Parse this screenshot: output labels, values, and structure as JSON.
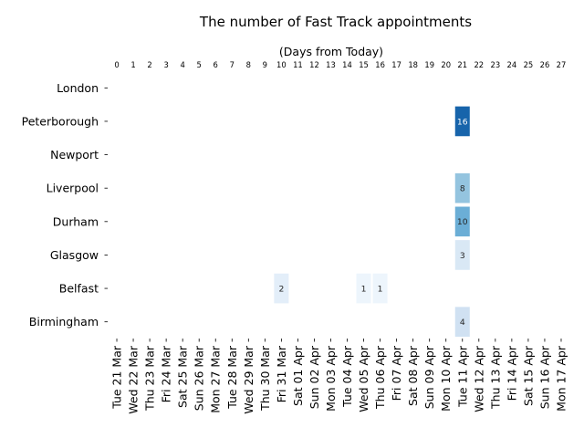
{
  "chart_data": {
    "type": "heatmap",
    "title": "The number of Fast Track appointments",
    "top_axis_label": "(Days from Today)",
    "top_ticks": [
      "0",
      "1",
      "2",
      "3",
      "4",
      "5",
      "6",
      "7",
      "8",
      "9",
      "10",
      "11",
      "12",
      "13",
      "14",
      "15",
      "16",
      "17",
      "18",
      "19",
      "20",
      "21",
      "22",
      "23",
      "24",
      "25",
      "26",
      "27"
    ],
    "x_dates": [
      "Tue 21 Mar",
      "Wed 22 Mar",
      "Thu 23 Mar",
      "Fri 24 Mar",
      "Sat 25 Mar",
      "Sun 26 Mar",
      "Mon 27 Mar",
      "Tue 28 Mar",
      "Wed 29 Mar",
      "Thu 30 Mar",
      "Fri 31 Mar",
      "Sat 01 Apr",
      "Sun 02 Apr",
      "Mon 03 Apr",
      "Tue 04 Apr",
      "Wed 05 Apr",
      "Thu 06 Apr",
      "Fri 07 Apr",
      "Sat 08 Apr",
      "Sun 09 Apr",
      "Mon 10 Apr",
      "Tue 11 Apr",
      "Wed 12 Apr",
      "Thu 13 Apr",
      "Fri 14 Apr",
      "Sat 15 Apr",
      "Sun 16 Apr",
      "Mon 17 Apr"
    ],
    "rows": [
      "London",
      "Peterborough",
      "Newport",
      "Liverpool",
      "Durham",
      "Glasgow",
      "Belfast",
      "Birmingham"
    ],
    "cells": [
      {
        "row": "Peterborough",
        "day": 21,
        "value": 16
      },
      {
        "row": "Liverpool",
        "day": 21,
        "value": 8
      },
      {
        "row": "Durham",
        "day": 21,
        "value": 10
      },
      {
        "row": "Glasgow",
        "day": 21,
        "value": 3
      },
      {
        "row": "Belfast",
        "day": 10,
        "value": 2
      },
      {
        "row": "Belfast",
        "day": 15,
        "value": 1
      },
      {
        "row": "Belfast",
        "day": 16,
        "value": 1
      },
      {
        "row": "Birmingham",
        "day": 21,
        "value": 4
      }
    ],
    "color_scale": "Blues",
    "color_range": [
      0,
      20
    ],
    "grid": false,
    "legend": "none"
  }
}
